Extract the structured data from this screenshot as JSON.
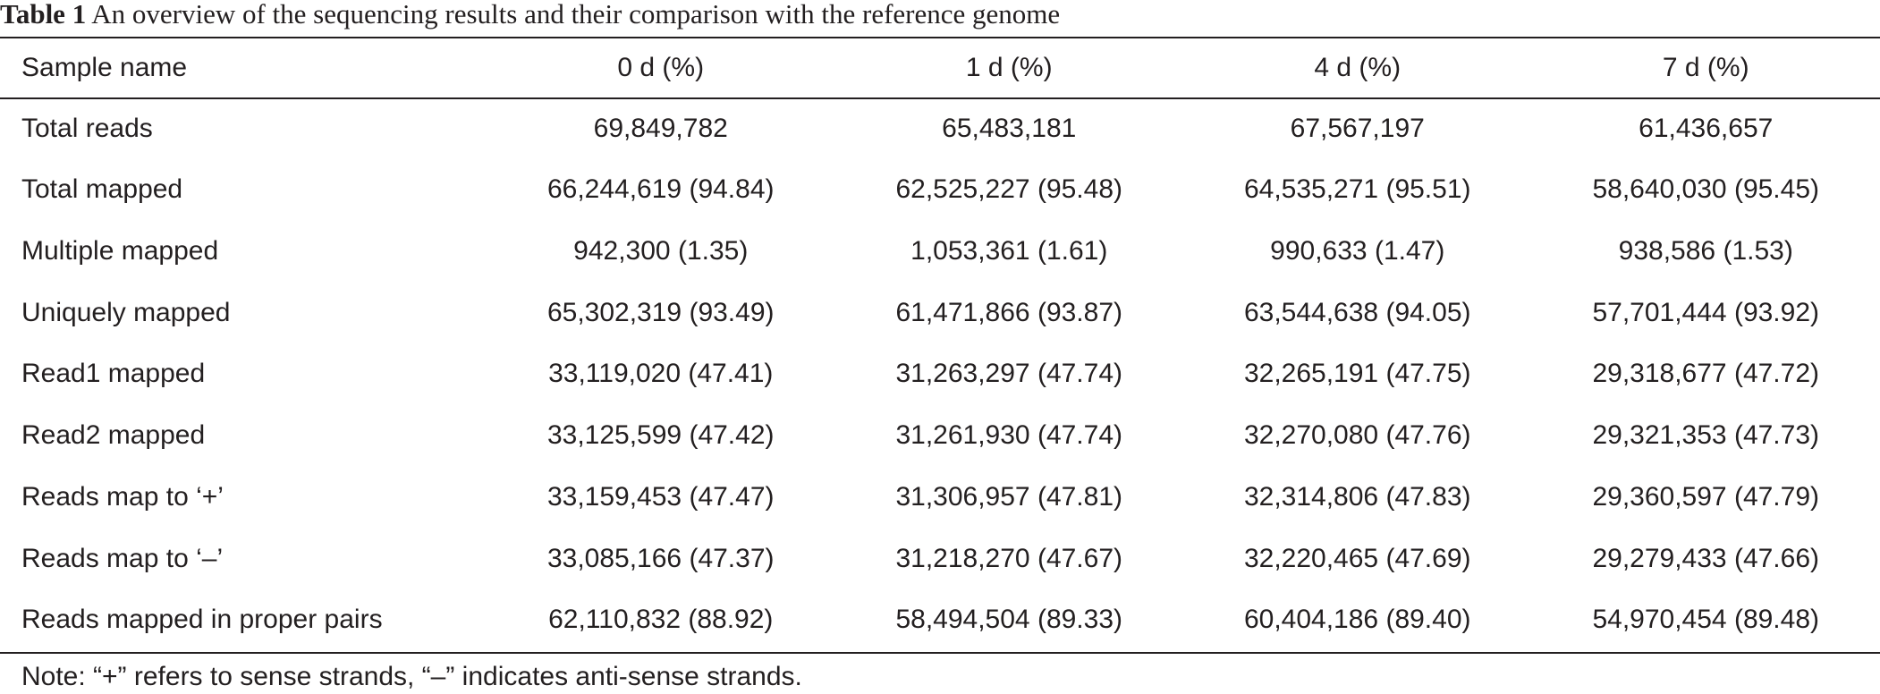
{
  "caption": {
    "label": "Table 1",
    "text": "An overview of the sequencing results and their comparison with the reference genome"
  },
  "table": {
    "headers": [
      "Sample name",
      "0 d (%)",
      "1 d (%)",
      "4 d (%)",
      "7 d (%)"
    ],
    "rows": [
      [
        "Total reads",
        "69,849,782",
        "65,483,181",
        "67,567,197",
        "61,436,657"
      ],
      [
        "Total mapped",
        "66,244,619 (94.84)",
        "62,525,227 (95.48)",
        "64,535,271 (95.51)",
        "58,640,030 (95.45)"
      ],
      [
        "Multiple mapped",
        "942,300 (1.35)",
        "1,053,361 (1.61)",
        "990,633 (1.47)",
        "938,586 (1.53)"
      ],
      [
        "Uniquely mapped",
        "65,302,319 (93.49)",
        "61,471,866 (93.87)",
        "63,544,638 (94.05)",
        "57,701,444 (93.92)"
      ],
      [
        "Read1 mapped",
        "33,119,020 (47.41)",
        "31,263,297 (47.74)",
        "32,265,191 (47.75)",
        "29,318,677 (47.72)"
      ],
      [
        "Read2 mapped",
        "33,125,599 (47.42)",
        "31,261,930 (47.74)",
        "32,270,080 (47.76)",
        "29,321,353 (47.73)"
      ],
      [
        "Reads map to ‘+’",
        "33,159,453 (47.47)",
        "31,306,957 (47.81)",
        "32,314,806 (47.83)",
        "29,360,597 (47.79)"
      ],
      [
        "Reads map to ‘–’",
        "33,085,166 (47.37)",
        "31,218,270 (47.67)",
        "32,220,465 (47.69)",
        "29,279,433 (47.66)"
      ],
      [
        "Reads mapped in proper pairs",
        "62,110,832 (88.92)",
        "58,494,504 (89.33)",
        "60,404,186 (89.40)",
        "54,970,454 (89.48)"
      ]
    ]
  },
  "note": "Note: “+” refers to sense strands, “–” indicates anti-sense strands."
}
